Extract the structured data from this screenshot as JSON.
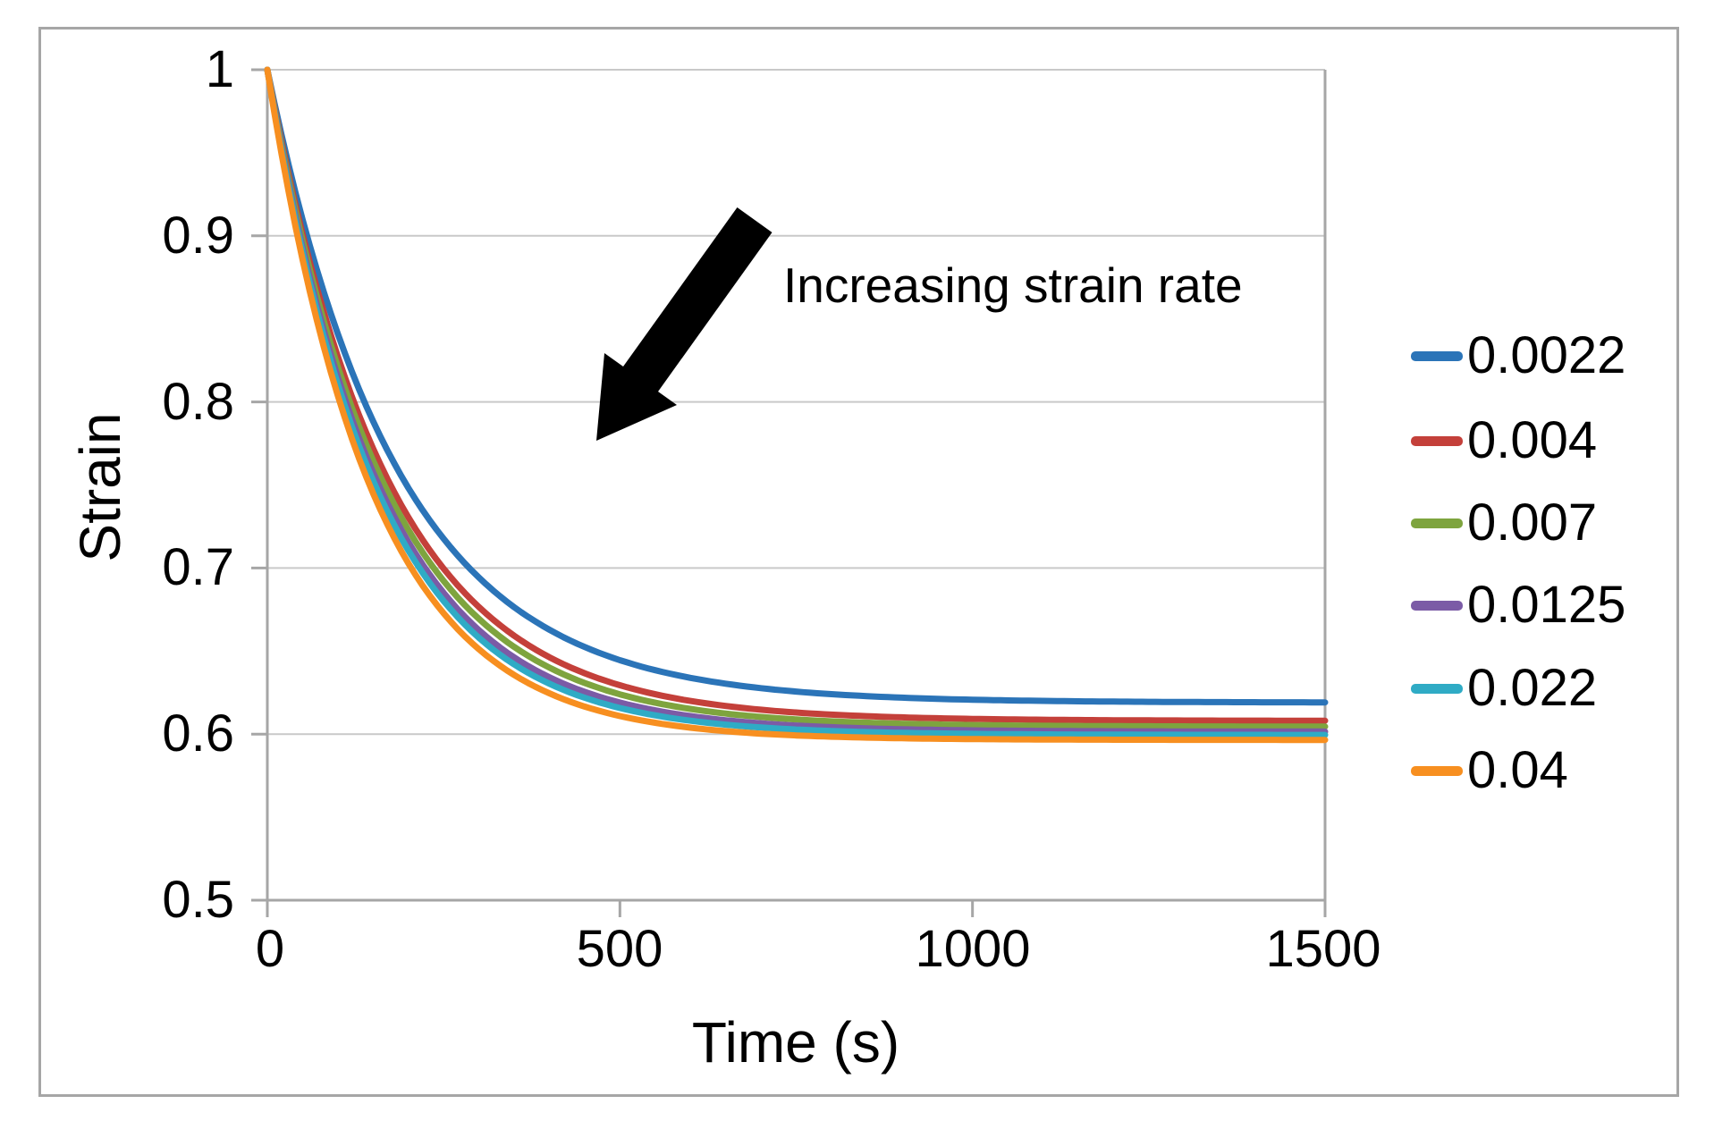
{
  "page": {
    "background": "#ffffff",
    "frame_border_color": "#a6a6a6"
  },
  "chart_data": {
    "type": "line",
    "title": "",
    "xlabel": "Time (s)",
    "ylabel": "Strain",
    "xlim": [
      0,
      1500
    ],
    "ylim": [
      0.5,
      1.0
    ],
    "x_ticks": [
      0,
      500,
      1000,
      1500
    ],
    "x_tick_labels": [
      "0",
      "500",
      "1000",
      "1500"
    ],
    "y_ticks": [
      1,
      0.9,
      0.8,
      0.7,
      0.6,
      0.5
    ],
    "y_tick_labels": [
      "1",
      "0.9",
      "0.8",
      "0.7",
      "0.6",
      "0.5"
    ],
    "grid": "horizontal-only",
    "gridline_color": "#c9c9c9",
    "axis_color": "#a6a6a6",
    "legend_position": "right-outside",
    "annotation": {
      "text": "Increasing strain rate",
      "arrow": "thick black arrow pointing down-left toward the curve bundle"
    },
    "series": [
      {
        "name": "0.0022",
        "color": "#2b74b8",
        "model": {
          "type": "exp_decay",
          "s0": 1.0,
          "s_inf": 0.619,
          "tau": 185
        },
        "x": [
          0,
          150,
          300,
          500,
          750,
          1000,
          1500
        ],
        "y": [
          1.0,
          0.788,
          0.694,
          0.645,
          0.626,
          0.621,
          0.619
        ]
      },
      {
        "name": "0.004",
        "color": "#c4403a",
        "model": {
          "type": "exp_decay",
          "s0": 1.0,
          "s_inf": 0.608,
          "tau": 172
        },
        "x": [
          0,
          150,
          300,
          500,
          750,
          1000,
          1500
        ],
        "y": [
          1.0,
          0.772,
          0.677,
          0.629,
          0.613,
          0.609,
          0.608
        ]
      },
      {
        "name": "0.007",
        "color": "#7ea43e",
        "model": {
          "type": "exp_decay",
          "s0": 1.0,
          "s_inf": 0.6045,
          "tau": 166
        },
        "x": [
          0,
          150,
          300,
          500,
          750,
          1000,
          1500
        ],
        "y": [
          1.0,
          0.765,
          0.669,
          0.624,
          0.609,
          0.606,
          0.605
        ]
      },
      {
        "name": "0.0125",
        "color": "#7b5ba6",
        "model": {
          "type": "exp_decay",
          "s0": 1.0,
          "s_inf": 0.6015,
          "tau": 160
        },
        "x": [
          0,
          150,
          300,
          500,
          750,
          1000,
          1500
        ],
        "y": [
          1.0,
          0.758,
          0.663,
          0.619,
          0.605,
          0.602,
          0.602
        ]
      },
      {
        "name": "0.022",
        "color": "#2fabc5",
        "model": {
          "type": "exp_decay",
          "s0": 1.0,
          "s_inf": 0.5995,
          "tau": 156
        },
        "x": [
          0,
          150,
          300,
          500,
          750,
          1000,
          1500
        ],
        "y": [
          1.0,
          0.753,
          0.658,
          0.616,
          0.603,
          0.6,
          0.6
        ]
      },
      {
        "name": "0.04",
        "color": "#f78f20",
        "model": {
          "type": "exp_decay",
          "s0": 1.0,
          "s_inf": 0.5965,
          "tau": 150
        },
        "x": [
          0,
          150,
          300,
          500,
          750,
          1000,
          1500
        ],
        "y": [
          1.0,
          0.745,
          0.651,
          0.611,
          0.599,
          0.597,
          0.597
        ]
      }
    ]
  }
}
